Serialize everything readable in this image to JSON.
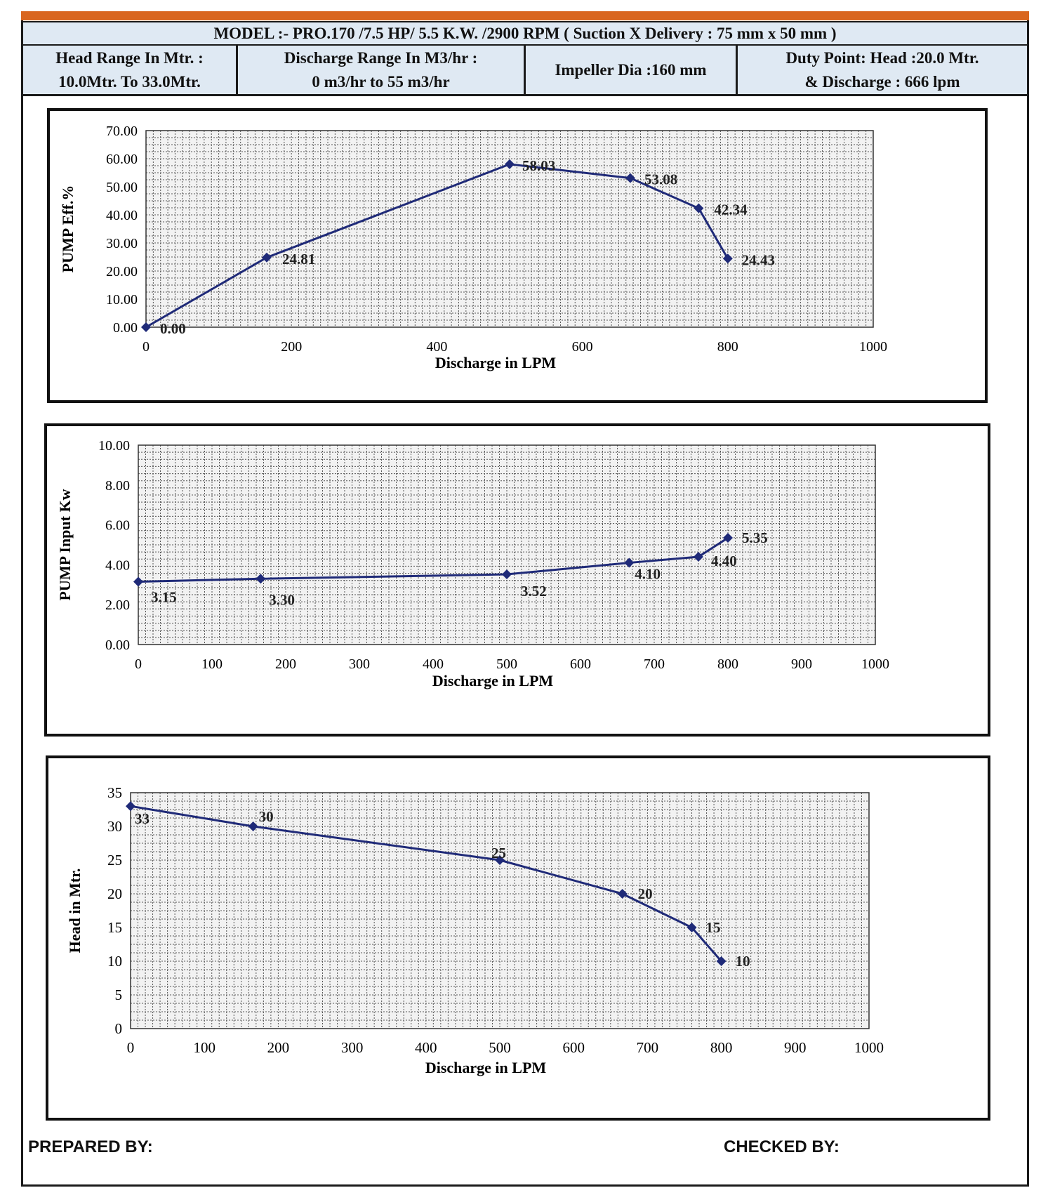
{
  "header": {
    "model": "MODEL :- PRO.170 /7.5 HP/ 5.5 K.W. /2900 RPM ( Suction X Delivery : 75 mm x 50 mm )",
    "head_range_label": "Head Range In Mtr. :",
    "head_range_value": "10.0Mtr. To 33.0Mtr.",
    "discharge_range_label": "Discharge Range In M3/hr :",
    "discharge_range_value": "0 m3/hr to 55 m3/hr",
    "impeller": "Impeller Dia :160 mm",
    "duty_point_line1": "Duty Point: Head :20.0 Mtr.",
    "duty_point_line2": "& Discharge : 666 lpm"
  },
  "colors": {
    "accent_orange": "#d9661f",
    "header_fill": "#dfe9f3",
    "series_line": "#1f2a78"
  },
  "chart_data": [
    {
      "type": "line",
      "title": "",
      "xlabel": "Discharge in LPM",
      "ylabel": "PUMP Eff.%",
      "xlim": [
        0,
        1000
      ],
      "ylim": [
        0,
        70
      ],
      "xticks": [
        0,
        200,
        400,
        600,
        800,
        1000
      ],
      "xtick_labels": [
        "0",
        "200",
        "400",
        "600",
        "800",
        "1000"
      ],
      "yticks": [
        0,
        10,
        20,
        30,
        40,
        50,
        60,
        70
      ],
      "ytick_labels": [
        "0.00",
        "10.00",
        "20.00",
        "30.00",
        "40.00",
        "50.00",
        "60.00",
        "70.00"
      ],
      "grid": true,
      "series": [
        {
          "name": "Efficiency",
          "x": [
            0,
            166,
            500,
            666,
            760,
            800
          ],
          "values": [
            0.0,
            24.81,
            58.03,
            53.08,
            42.34,
            24.43
          ],
          "labels": [
            "0.00",
            "24.81",
            "58.03",
            "53.08",
            "42.34",
            "24.43"
          ]
        }
      ]
    },
    {
      "type": "line",
      "title": "",
      "xlabel": "Discharge in LPM",
      "ylabel": "PUMP  Input Kw",
      "xlim": [
        0,
        1000
      ],
      "ylim": [
        0,
        10
      ],
      "xticks": [
        0,
        100,
        200,
        300,
        400,
        500,
        600,
        700,
        800,
        900,
        1000
      ],
      "xtick_labels": [
        "0",
        "100",
        "200",
        "300",
        "400",
        "500",
        "600",
        "700",
        "800",
        "900",
        "1000"
      ],
      "yticks": [
        0,
        2,
        4,
        6,
        8,
        10
      ],
      "ytick_labels": [
        "0.00",
        "2.00",
        "4.00",
        "6.00",
        "8.00",
        "10.00"
      ],
      "grid": true,
      "series": [
        {
          "name": "Input Kw",
          "x": [
            0,
            166,
            500,
            666,
            760,
            800
          ],
          "values": [
            3.15,
            3.3,
            3.52,
            4.1,
            4.4,
            5.35
          ],
          "labels": [
            "3.15",
            "3.30",
            "3.52",
            "4.10",
            "4.40",
            "5.35"
          ]
        }
      ]
    },
    {
      "type": "line",
      "title": "",
      "xlabel": "Discharge in LPM",
      "ylabel": "Head in Mtr.",
      "xlim": [
        0,
        1000
      ],
      "ylim": [
        0,
        35
      ],
      "xticks": [
        0,
        100,
        200,
        300,
        400,
        500,
        600,
        700,
        800,
        900,
        1000
      ],
      "xtick_labels": [
        "0",
        "100",
        "200",
        "300",
        "400",
        "500",
        "600",
        "700",
        "800",
        "900",
        "1000"
      ],
      "yticks": [
        0,
        5,
        10,
        15,
        20,
        25,
        30,
        35
      ],
      "ytick_labels": [
        "0",
        "5",
        "10",
        "15",
        "20",
        "25",
        "30",
        "35"
      ],
      "grid": true,
      "series": [
        {
          "name": "Head",
          "x": [
            0,
            166,
            500,
            666,
            760,
            800
          ],
          "values": [
            33,
            30,
            25,
            20,
            15,
            10
          ],
          "labels": [
            "33",
            "30",
            "25",
            "20",
            "15",
            "10"
          ]
        }
      ]
    }
  ],
  "footer": {
    "prepared_by": "PREPARED BY:",
    "checked_by": "CHECKED BY:"
  }
}
